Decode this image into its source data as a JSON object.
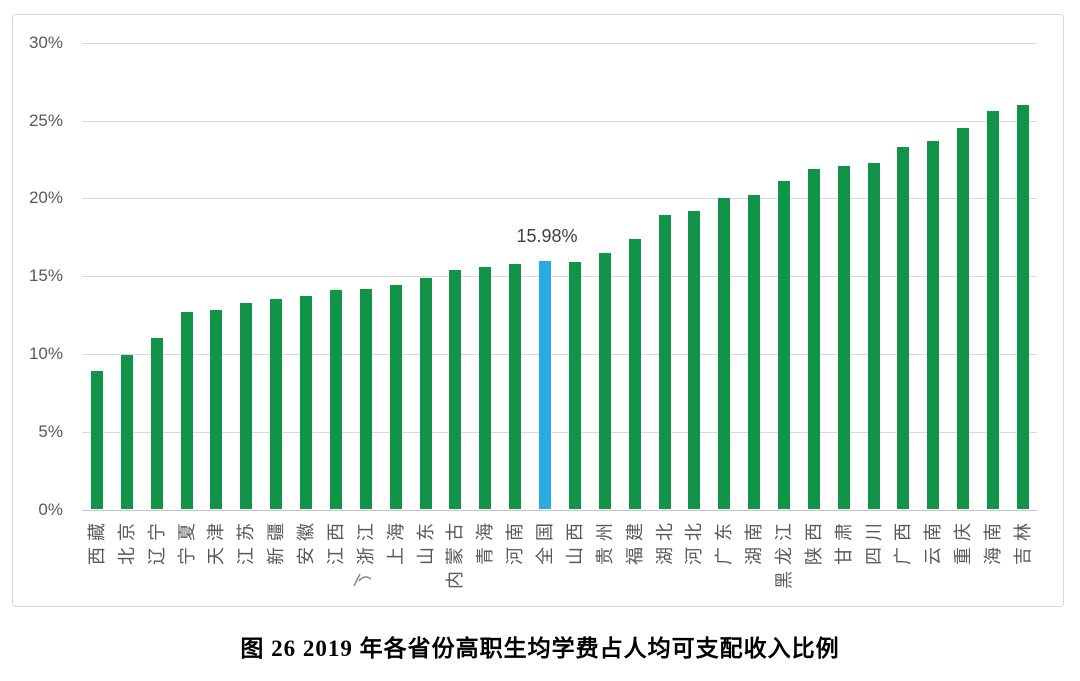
{
  "figure": {
    "caption": "图 26  2019 年各省份高职生均学费占人均可支配收入比例"
  },
  "chart_data": {
    "type": "bar",
    "title": "图 26 2019 年各省份高职生均学费占人均可支配收入比例",
    "xlabel": "",
    "ylabel": "",
    "ylim": [
      0,
      30
    ],
    "grid": true,
    "legend": "none",
    "yticks": [
      "0%",
      "5%",
      "10%",
      "15%",
      "20%",
      "25%",
      "30%"
    ],
    "ytick_values": [
      0,
      5,
      10,
      15,
      20,
      25,
      30
    ],
    "bar_color": "#129448",
    "highlight_color": "#29ABE2",
    "highlight_category": "全国",
    "data_label": {
      "category": "全国",
      "text": "15.98%"
    },
    "categories": [
      "西藏",
      "北京",
      "辽宁",
      "宁夏",
      "天津",
      "江苏",
      "新疆",
      "安徽",
      "江西",
      "浙江",
      "上海",
      "山东",
      "内蒙古",
      "青海",
      "河南",
      "全国",
      "山西",
      "贵州",
      "福建",
      "湖北",
      "河北",
      "广东",
      "湖南",
      "黑龙江",
      "陕西",
      "甘肃",
      "四川",
      "广西",
      "云南",
      "重庆",
      "海南",
      "吉林"
    ],
    "values": [
      8.9,
      9.9,
      11.0,
      12.7,
      12.8,
      13.3,
      13.5,
      13.7,
      14.1,
      14.2,
      14.4,
      14.9,
      15.4,
      15.6,
      15.8,
      15.98,
      15.9,
      16.5,
      17.4,
      18.9,
      19.2,
      20.0,
      20.2,
      21.1,
      21.9,
      22.1,
      22.3,
      23.3,
      23.7,
      24.5,
      25.6,
      26.0
    ]
  }
}
